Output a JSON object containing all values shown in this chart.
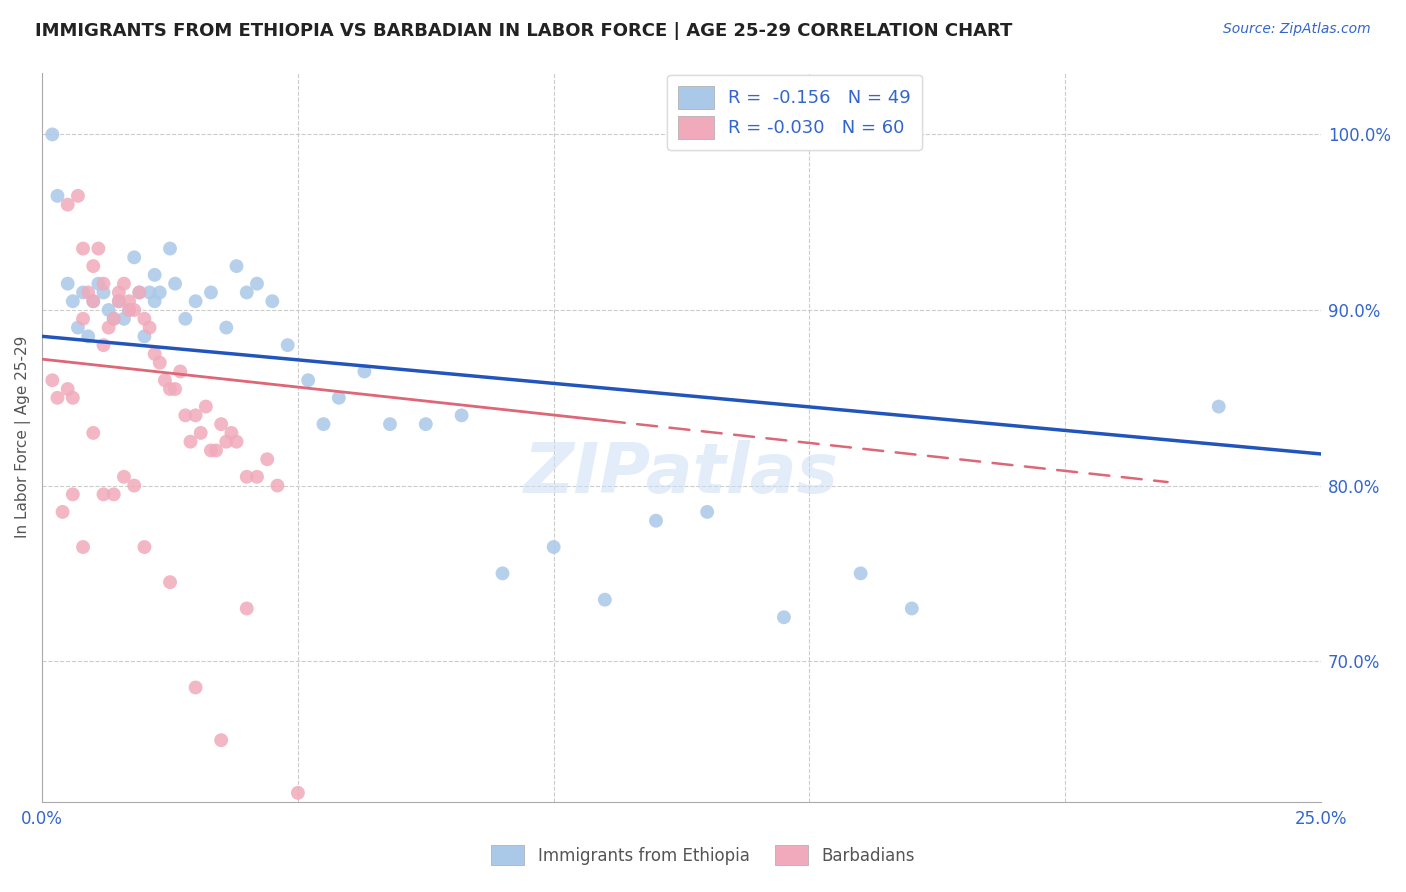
{
  "title": "IMMIGRANTS FROM ETHIOPIA VS BARBADIAN IN LABOR FORCE | AGE 25-29 CORRELATION CHART",
  "source": "Source: ZipAtlas.com",
  "ylabel": "In Labor Force | Age 25-29",
  "legend_r_blue": "R =  -0.156",
  "legend_n_blue": "N = 49",
  "legend_r_pink": "R = -0.030",
  "legend_n_pink": "N = 60",
  "legend_label_blue": "Immigrants from Ethiopia",
  "legend_label_pink": "Barbadians",
  "blue_fill": "#aac8e8",
  "pink_fill": "#f0aabb",
  "blue_line": "#2255bb",
  "pink_line": "#dd6677",
  "text_color": "#222222",
  "axis_label_color": "#3366cc",
  "grid_color": "#cccccc",
  "blue_x": [
    0.002,
    0.003,
    0.005,
    0.006,
    0.007,
    0.008,
    0.009,
    0.01,
    0.011,
    0.012,
    0.013,
    0.014,
    0.015,
    0.016,
    0.017,
    0.018,
    0.019,
    0.02,
    0.021,
    0.022,
    0.022,
    0.023,
    0.025,
    0.026,
    0.028,
    0.03,
    0.033,
    0.036,
    0.038,
    0.04,
    0.042,
    0.045,
    0.048,
    0.052,
    0.055,
    0.058,
    0.063,
    0.068,
    0.075,
    0.082,
    0.09,
    0.1,
    0.11,
    0.12,
    0.13,
    0.145,
    0.16,
    0.17,
    0.23
  ],
  "blue_y": [
    100.0,
    96.5,
    91.5,
    90.5,
    89.0,
    91.0,
    88.5,
    90.5,
    91.5,
    91.0,
    90.0,
    89.5,
    90.5,
    89.5,
    90.0,
    93.0,
    91.0,
    88.5,
    91.0,
    90.5,
    92.0,
    91.0,
    93.5,
    91.5,
    89.5,
    90.5,
    91.0,
    89.0,
    92.5,
    91.0,
    91.5,
    90.5,
    88.0,
    86.0,
    83.5,
    85.0,
    86.5,
    83.5,
    83.5,
    84.0,
    75.0,
    76.5,
    73.5,
    78.0,
    78.5,
    72.5,
    75.0,
    73.0,
    84.5
  ],
  "pink_x": [
    0.002,
    0.003,
    0.004,
    0.005,
    0.005,
    0.006,
    0.007,
    0.008,
    0.008,
    0.009,
    0.01,
    0.01,
    0.011,
    0.012,
    0.012,
    0.013,
    0.014,
    0.015,
    0.015,
    0.016,
    0.017,
    0.017,
    0.018,
    0.019,
    0.02,
    0.021,
    0.022,
    0.023,
    0.024,
    0.025,
    0.026,
    0.027,
    0.028,
    0.029,
    0.03,
    0.031,
    0.032,
    0.033,
    0.034,
    0.035,
    0.036,
    0.037,
    0.038,
    0.04,
    0.042,
    0.044,
    0.046,
    0.006,
    0.008,
    0.01,
    0.012,
    0.014,
    0.016,
    0.018,
    0.02,
    0.025,
    0.03,
    0.035,
    0.04,
    0.05
  ],
  "pink_y": [
    86.0,
    85.0,
    78.5,
    96.0,
    85.5,
    85.0,
    96.5,
    89.5,
    93.5,
    91.0,
    92.5,
    90.5,
    93.5,
    88.0,
    91.5,
    89.0,
    89.5,
    91.0,
    90.5,
    91.5,
    90.5,
    90.0,
    90.0,
    91.0,
    89.5,
    89.0,
    87.5,
    87.0,
    86.0,
    85.5,
    85.5,
    86.5,
    84.0,
    82.5,
    84.0,
    83.0,
    84.5,
    82.0,
    82.0,
    83.5,
    82.5,
    83.0,
    82.5,
    80.5,
    80.5,
    81.5,
    80.0,
    79.5,
    76.5,
    83.0,
    79.5,
    79.5,
    80.5,
    80.0,
    76.5,
    74.5,
    68.5,
    65.5,
    73.0,
    62.5
  ],
  "blue_line_x0": 0.0,
  "blue_line_y0": 88.5,
  "blue_line_x1": 0.25,
  "blue_line_y1": 81.8,
  "pink_line_x0": 0.0,
  "pink_line_y0": 87.2,
  "pink_line_x1": 0.22,
  "pink_line_y1": 80.2,
  "xlim": [
    0.0,
    0.25
  ],
  "ylim": [
    62.0,
    103.5
  ],
  "yticks": [
    70.0,
    80.0,
    90.0,
    100.0
  ],
  "ytick_labels": [
    "70.0%",
    "80.0%",
    "90.0%",
    "100.0%"
  ],
  "xtick_positions": [
    0.0,
    0.05,
    0.1,
    0.15,
    0.2,
    0.25
  ],
  "figsize": [
    14.06,
    8.92
  ],
  "dpi": 100
}
